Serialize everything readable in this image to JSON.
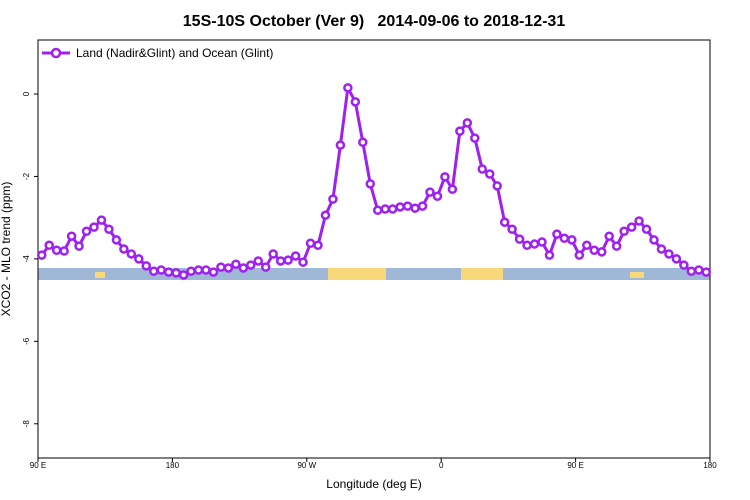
{
  "chart_data": {
    "type": "line",
    "title": "15S-10S October (Ver 9)   2014-09-06 to 2018-12-31",
    "xlabel": "Longitude (deg E)",
    "ylabel": "XCO2 - MLO trend (ppm)",
    "xlim": [
      90,
      540
    ],
    "xticks": [
      {
        "value": 90,
        "label": "90 E"
      },
      180,
      {
        "value": 270,
        "label": "90 W"
      },
      {
        "value": 360,
        "label": "0"
      },
      {
        "value": 450,
        "label": "90 E"
      },
      {
        "value": 540,
        "label": "180"
      }
    ],
    "ylim": [
      -8.83,
      1.31
    ],
    "yticks": [
      0,
      -2,
      -4,
      -6,
      -8
    ],
    "legend": "top-left",
    "x": [
      92.5,
      97.5,
      102.5,
      107.5,
      112.5,
      117.5,
      122.5,
      127.5,
      132.5,
      137.5,
      142.5,
      147.5,
      152.5,
      157.5,
      162.5,
      167.5,
      172.5,
      177.5,
      182.5,
      187.5,
      192.5,
      197.5,
      202.5,
      207.5,
      212.5,
      217.5,
      222.5,
      227.5,
      232.5,
      237.5,
      242.5,
      247.5,
      252.5,
      257.5,
      262.5,
      267.5,
      272.5,
      277.5,
      282.5,
      287.5,
      292.5,
      297.5,
      302.5,
      307.5,
      312.5,
      317.5,
      322.5,
      327.5,
      332.5,
      337.5,
      342.5,
      347.5,
      352.5,
      357.5,
      362.5,
      367.5,
      372.5,
      377.5,
      382.5,
      387.5,
      392.5,
      397.5,
      402.5,
      407.5,
      412.5,
      417.5,
      422.5,
      427.5,
      432.5,
      437.5,
      442.5,
      447.5,
      452.5,
      457.5,
      462.5,
      467.5,
      472.5,
      477.5,
      482.5,
      487.5,
      492.5,
      497.5,
      502.5,
      507.5,
      512.5,
      517.5,
      522.5,
      527.5,
      532.5,
      537.5
    ],
    "series": [
      {
        "name": "Land (Nadir&Glint) and Ocean (Glint)",
        "color": "#a020f0",
        "values": [
          -3.91,
          -3.67,
          -3.79,
          -3.81,
          -3.45,
          -3.69,
          -3.33,
          -3.23,
          -3.06,
          -3.28,
          -3.54,
          -3.76,
          -3.88,
          -4.0,
          -4.17,
          -4.3,
          -4.27,
          -4.32,
          -4.34,
          -4.39,
          -4.3,
          -4.27,
          -4.27,
          -4.32,
          -4.2,
          -4.22,
          -4.13,
          -4.22,
          -4.15,
          -4.05,
          -4.2,
          -3.88,
          -4.05,
          -4.03,
          -3.93,
          -4.08,
          -3.62,
          -3.67,
          -2.94,
          -2.55,
          -1.24,
          0.15,
          -0.19,
          -1.17,
          -2.18,
          -2.82,
          -2.79,
          -2.79,
          -2.74,
          -2.72,
          -2.77,
          -2.72,
          -2.38,
          -2.48,
          -2.01,
          -2.31,
          -0.9,
          -0.7,
          -1.07,
          -1.82,
          -1.94,
          -2.23,
          -3.11,
          -3.28,
          -3.52,
          -3.67,
          -3.64,
          -3.59,
          -3.91,
          -3.4,
          -3.5,
          -3.54,
          -3.91,
          -3.67,
          -3.79,
          -3.83,
          -3.45,
          -3.69,
          -3.33,
          -3.23,
          -3.08,
          -3.28,
          -3.54,
          -3.76,
          -3.88,
          -4.0,
          -4.15,
          -4.3,
          -4.27,
          -4.32
        ]
      }
    ]
  }
}
